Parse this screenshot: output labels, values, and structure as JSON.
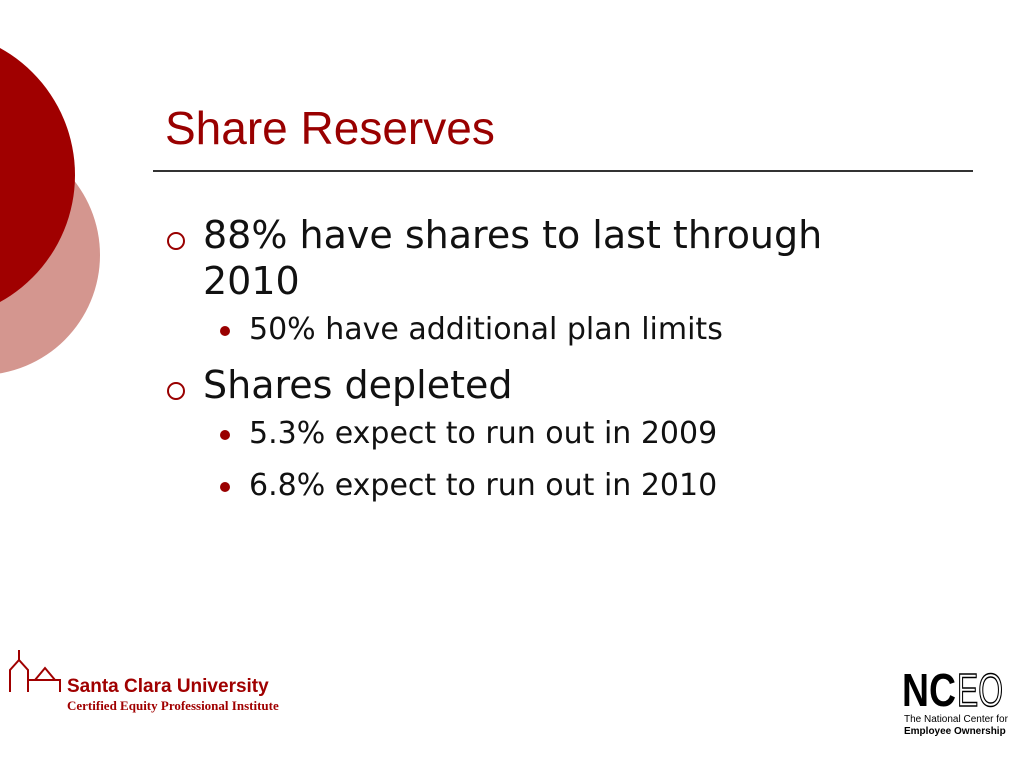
{
  "title": "Share Reserves",
  "bullets": [
    {
      "text": "88% have shares to last through 2010",
      "sub": [
        "50% have additional plan limits"
      ]
    },
    {
      "text": "Shares depleted",
      "sub": [
        "5.3% expect to run out in 2009",
        "6.8% expect to run out in 2010"
      ]
    }
  ],
  "footer": {
    "left": {
      "name": "Santa Clara University",
      "subtitle": "Certified Equity Professional Institute"
    },
    "right": {
      "logo_a": "NC",
      "logo_b": "EO",
      "line1": "The National Center for",
      "line2": "Employee Ownership"
    }
  }
}
